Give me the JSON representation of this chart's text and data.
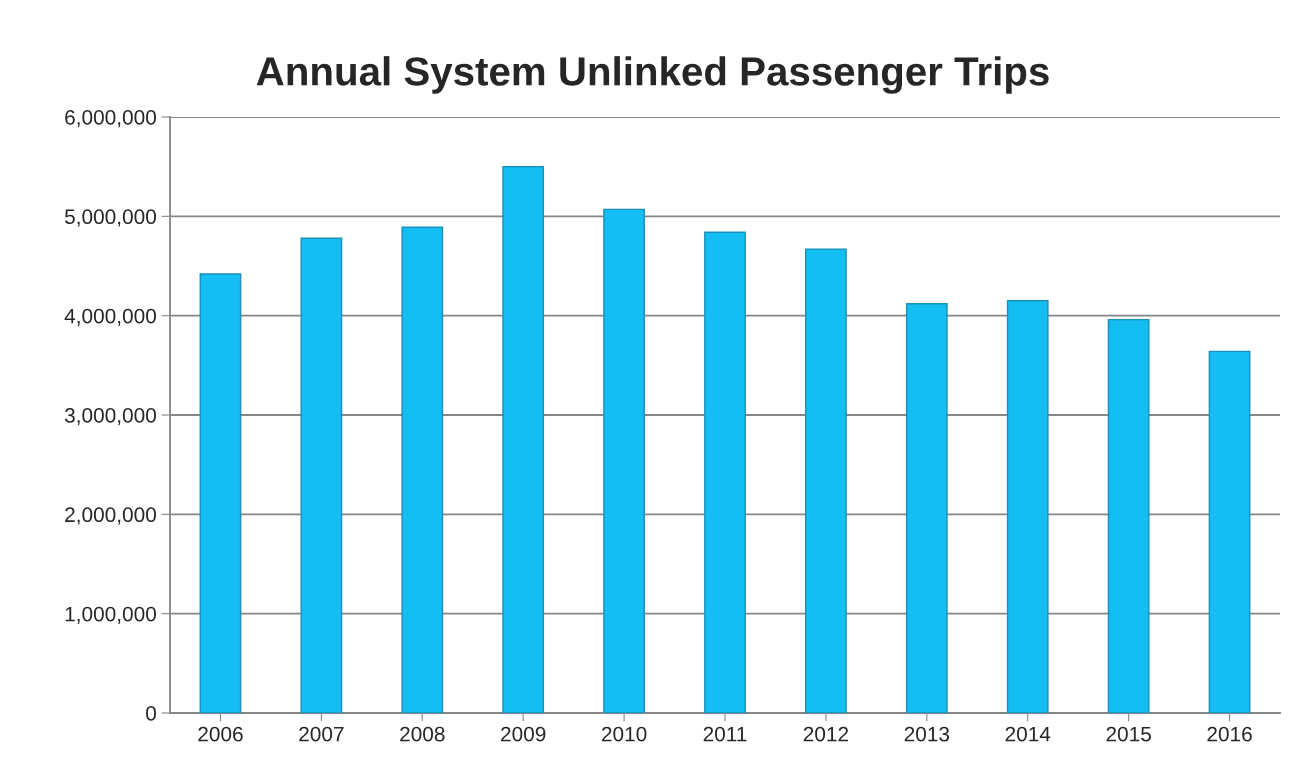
{
  "chart_data": {
    "type": "bar",
    "title": "Annual System Unlinked Passenger Trips",
    "categories": [
      "2006",
      "2007",
      "2008",
      "2009",
      "2010",
      "2011",
      "2012",
      "2013",
      "2014",
      "2015",
      "2016"
    ],
    "values": [
      4420000,
      4780000,
      4890000,
      5500000,
      5070000,
      4840000,
      4670000,
      4120000,
      4150000,
      3960000,
      3640000
    ],
    "color": "#14bdf2",
    "ylim": [
      0,
      6000000
    ],
    "yticks": [
      {
        "value": 0,
        "label": "0"
      },
      {
        "value": 1000000,
        "label": "1,000,000"
      },
      {
        "value": 2000000,
        "label": "2,000,000"
      },
      {
        "value": 3000000,
        "label": "3,000,000"
      },
      {
        "value": 4000000,
        "label": "4,000,000"
      },
      {
        "value": 5000000,
        "label": "5,000,000"
      },
      {
        "value": 6000000,
        "label": "6,000,000"
      }
    ],
    "grid": "y"
  }
}
